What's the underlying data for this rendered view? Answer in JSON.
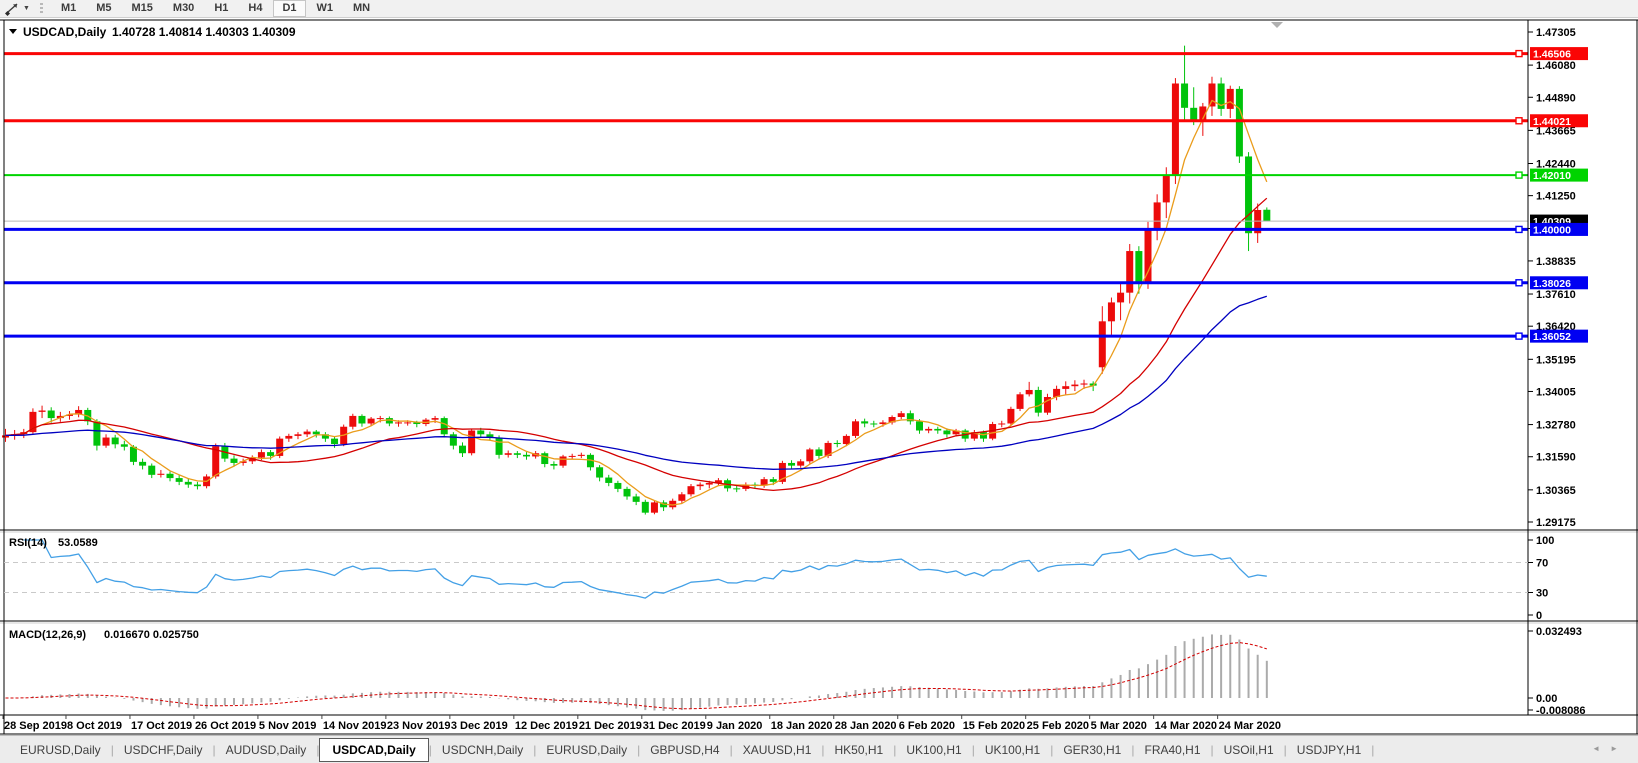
{
  "toolbar": {
    "dropdown_icon": "▼",
    "timeframes": [
      "M1",
      "M5",
      "M15",
      "M30",
      "H1",
      "H4",
      "D1",
      "W1",
      "MN"
    ],
    "active_timeframe": "D1"
  },
  "chart": {
    "title": {
      "collapse_icon": "▼",
      "symbol": "USDCAD,Daily",
      "ohlc": "1.40728 1.40814 1.40303 1.40309"
    },
    "rsi_label": {
      "name": "RSI(14)",
      "value": "53.0589"
    },
    "macd_label": {
      "name": "MACD(12,26,9)",
      "values": "0.016670 0.025750"
    }
  },
  "chart_data": {
    "type": "candlestick+indicators",
    "symbol": "USDCAD",
    "timeframe": "Daily",
    "last_ohlc": {
      "open": 1.40728,
      "high": 1.40814,
      "low": 1.40303,
      "close": 1.40309
    },
    "price_axis": {
      "range": [
        1.29175,
        1.47305
      ],
      "ticks": [
        "1.47305",
        "1.46080",
        "1.44890",
        "1.43665",
        "1.42440",
        "1.41250",
        "1.40035",
        "1.38835",
        "1.37610",
        "1.36420",
        "1.35195",
        "1.34005",
        "1.32780",
        "1.31590",
        "1.30365",
        "1.29175"
      ],
      "current": {
        "label": "1.40309",
        "value": 1.40309
      }
    },
    "hlines": [
      {
        "value": 1.46506,
        "label": "1.46506",
        "color": "#fa0505",
        "width": 3
      },
      {
        "value": 1.44021,
        "label": "1.44021",
        "color": "#fa0505",
        "width": 3
      },
      {
        "value": 1.4201,
        "label": "1.42010",
        "color": "#00d400",
        "width": 2
      },
      {
        "value": 1.4,
        "label": "1.40000",
        "color": "#0000f2",
        "width": 3
      },
      {
        "value": 1.38026,
        "label": "1.38026",
        "color": "#0000f2",
        "width": 3
      },
      {
        "value": 1.36052,
        "label": "1.36052",
        "color": "#0000f2",
        "width": 3
      }
    ],
    "moving_averages": [
      {
        "name": "ma-fast",
        "period": 5,
        "method": "sma",
        "color": "#ea9c1b"
      },
      {
        "name": "ma-medium",
        "period": 20,
        "method": "sma",
        "color": "#d40000"
      },
      {
        "name": "ma-slow",
        "period": 50,
        "method": "ema",
        "color": "#0000c0"
      }
    ],
    "rsi": {
      "period": 14,
      "last": 53.0589,
      "levels": [
        70,
        30
      ],
      "axis": [
        "100",
        "70",
        "30",
        "0"
      ],
      "color": "#43a0e6"
    },
    "macd": {
      "fast": 12,
      "slow": 26,
      "signal": 9,
      "last_main": 0.01667,
      "last_signal": 0.02575,
      "axis_max": "0.032493",
      "axis_zero": "0.00",
      "axis_min": "-0.008086",
      "hist_color": "#ababab",
      "signal_color": "#d40000"
    },
    "colors": {
      "bull": "#ec0b0b",
      "bear": "#00c30b",
      "background": "#ffffff",
      "border": "#000000",
      "current_price_line": "#b8b8b8",
      "current_price_badge": "#000000",
      "rsi_level_dash": "#c9c9c9",
      "shift_marker": "#b0b0b0"
    },
    "x_axis_dates": [
      "28 Sep 2019",
      "8 Oct 2019",
      "17 Oct 2019",
      "26 Oct 2019",
      "5 Nov 2019",
      "14 Nov 2019",
      "23 Nov 2019",
      "3 Dec 2019",
      "12 Dec 2019",
      "21 Dec 2019",
      "31 Dec 2019",
      "9 Jan 2020",
      "18 Jan 2020",
      "28 Jan 2020",
      "6 Feb 2020",
      "15 Feb 2020",
      "25 Feb 2020",
      "5 Mar 2020",
      "14 Mar 2020",
      "24 Mar 2020"
    ],
    "candles": [
      [
        1.323,
        1.3262,
        1.3214,
        1.3238
      ],
      [
        1.3238,
        1.3258,
        1.3222,
        1.3243
      ],
      [
        1.3243,
        1.3262,
        1.3228,
        1.325
      ],
      [
        1.325,
        1.3338,
        1.3244,
        1.3325
      ],
      [
        1.3325,
        1.3348,
        1.3302,
        1.333
      ],
      [
        1.333,
        1.3342,
        1.3285,
        1.3302
      ],
      [
        1.3302,
        1.3325,
        1.3288,
        1.331
      ],
      [
        1.331,
        1.3328,
        1.3296,
        1.3315
      ],
      [
        1.3315,
        1.3346,
        1.3305,
        1.3332
      ],
      [
        1.3332,
        1.334,
        1.3276,
        1.329
      ],
      [
        1.329,
        1.3298,
        1.3182,
        1.32
      ],
      [
        1.32,
        1.3242,
        1.3192,
        1.323
      ],
      [
        1.323,
        1.324,
        1.319,
        1.3205
      ],
      [
        1.3205,
        1.3218,
        1.3182,
        1.3196
      ],
      [
        1.3196,
        1.3202,
        1.3128,
        1.314
      ],
      [
        1.314,
        1.3152,
        1.3112,
        1.3126
      ],
      [
        1.3126,
        1.3134,
        1.308,
        1.3092
      ],
      [
        1.3092,
        1.311,
        1.3082,
        1.3096
      ],
      [
        1.3096,
        1.3104,
        1.3068,
        1.308
      ],
      [
        1.308,
        1.3092,
        1.3054,
        1.3066
      ],
      [
        1.3066,
        1.308,
        1.3044,
        1.3056
      ],
      [
        1.3056,
        1.3066,
        1.3038,
        1.305
      ],
      [
        1.305,
        1.3094,
        1.3042,
        1.3086
      ],
      [
        1.3086,
        1.3208,
        1.3078,
        1.3198
      ],
      [
        1.3198,
        1.321,
        1.314,
        1.3152
      ],
      [
        1.3152,
        1.3164,
        1.3122,
        1.3136
      ],
      [
        1.3136,
        1.3152,
        1.3126,
        1.3142
      ],
      [
        1.3142,
        1.3164,
        1.3132,
        1.3156
      ],
      [
        1.3156,
        1.3186,
        1.3146,
        1.3176
      ],
      [
        1.3176,
        1.3184,
        1.3148,
        1.3162
      ],
      [
        1.3162,
        1.3234,
        1.3154,
        1.3226
      ],
      [
        1.3226,
        1.3244,
        1.3214,
        1.3236
      ],
      [
        1.3236,
        1.325,
        1.3224,
        1.3242
      ],
      [
        1.3242,
        1.326,
        1.3232,
        1.3252
      ],
      [
        1.3252,
        1.3258,
        1.323,
        1.3242
      ],
      [
        1.3242,
        1.325,
        1.3214,
        1.3226
      ],
      [
        1.3226,
        1.3234,
        1.3192,
        1.3206
      ],
      [
        1.3206,
        1.3278,
        1.3198,
        1.327
      ],
      [
        1.327,
        1.3318,
        1.326,
        1.331
      ],
      [
        1.331,
        1.3316,
        1.327,
        1.3282
      ],
      [
        1.3282,
        1.3306,
        1.3272,
        1.33
      ],
      [
        1.33,
        1.331,
        1.3286,
        1.3302
      ],
      [
        1.3302,
        1.3308,
        1.3272,
        1.3282
      ],
      [
        1.3282,
        1.3294,
        1.327,
        1.3286
      ],
      [
        1.3286,
        1.3294,
        1.3274,
        1.3286
      ],
      [
        1.3286,
        1.3292,
        1.3268,
        1.328
      ],
      [
        1.328,
        1.3302,
        1.3272,
        1.3296
      ],
      [
        1.3296,
        1.331,
        1.3284,
        1.3302
      ],
      [
        1.3302,
        1.3308,
        1.323,
        1.3242
      ],
      [
        1.3242,
        1.325,
        1.3186,
        1.32
      ],
      [
        1.32,
        1.3212,
        1.3158,
        1.3172
      ],
      [
        1.3172,
        1.3262,
        1.3164,
        1.3256
      ],
      [
        1.3256,
        1.3266,
        1.323,
        1.3242
      ],
      [
        1.3242,
        1.3252,
        1.3218,
        1.323
      ],
      [
        1.323,
        1.3238,
        1.3152,
        1.3166
      ],
      [
        1.3166,
        1.3182,
        1.3156,
        1.3172
      ],
      [
        1.3172,
        1.318,
        1.3154,
        1.3166
      ],
      [
        1.3166,
        1.3176,
        1.3148,
        1.316
      ],
      [
        1.316,
        1.318,
        1.3152,
        1.3172
      ],
      [
        1.3172,
        1.3178,
        1.312,
        1.3132
      ],
      [
        1.3132,
        1.3142,
        1.3112,
        1.3126
      ],
      [
        1.3126,
        1.3166,
        1.3118,
        1.316
      ],
      [
        1.316,
        1.317,
        1.315,
        1.3162
      ],
      [
        1.3162,
        1.3174,
        1.3154,
        1.3166
      ],
      [
        1.3166,
        1.3172,
        1.3108,
        1.312
      ],
      [
        1.312,
        1.3128,
        1.3068,
        1.3082
      ],
      [
        1.3082,
        1.3092,
        1.305,
        1.3062
      ],
      [
        1.3062,
        1.307,
        1.3028,
        1.304
      ],
      [
        1.304,
        1.3048,
        1.3,
        1.3012
      ],
      [
        1.3012,
        1.3022,
        1.298,
        1.2992
      ],
      [
        1.2992,
        1.3,
        1.2945,
        1.2952
      ],
      [
        1.2952,
        1.2998,
        1.2946,
        1.299
      ],
      [
        1.299,
        1.2998,
        1.2958,
        1.2972
      ],
      [
        1.2972,
        1.3004,
        1.2964,
        1.2996
      ],
      [
        1.2996,
        1.3028,
        1.2988,
        1.302
      ],
      [
        1.302,
        1.3058,
        1.3012,
        1.305
      ],
      [
        1.305,
        1.3064,
        1.3036,
        1.3056
      ],
      [
        1.3056,
        1.307,
        1.3042,
        1.3062
      ],
      [
        1.3062,
        1.308,
        1.3052,
        1.3072
      ],
      [
        1.3072,
        1.3078,
        1.303,
        1.3042
      ],
      [
        1.3042,
        1.3052,
        1.3028,
        1.304
      ],
      [
        1.304,
        1.3064,
        1.3032,
        1.3056
      ],
      [
        1.3056,
        1.3064,
        1.304,
        1.3052
      ],
      [
        1.3052,
        1.3084,
        1.3044,
        1.3076
      ],
      [
        1.3076,
        1.3084,
        1.3054,
        1.3066
      ],
      [
        1.3066,
        1.3144,
        1.3058,
        1.3136
      ],
      [
        1.3136,
        1.3146,
        1.3114,
        1.3126
      ],
      [
        1.3126,
        1.315,
        1.3118,
        1.3142
      ],
      [
        1.3142,
        1.3192,
        1.3134,
        1.3186
      ],
      [
        1.3186,
        1.3194,
        1.315,
        1.3162
      ],
      [
        1.3162,
        1.3218,
        1.3154,
        1.321
      ],
      [
        1.321,
        1.322,
        1.3194,
        1.3206
      ],
      [
        1.3206,
        1.3242,
        1.3198,
        1.3236
      ],
      [
        1.3236,
        1.3298,
        1.3228,
        1.329
      ],
      [
        1.329,
        1.33,
        1.3268,
        1.3282
      ],
      [
        1.3282,
        1.3292,
        1.3268,
        1.328
      ],
      [
        1.328,
        1.3294,
        1.327,
        1.3286
      ],
      [
        1.3286,
        1.3312,
        1.3278,
        1.3306
      ],
      [
        1.3306,
        1.3328,
        1.3298,
        1.332
      ],
      [
        1.332,
        1.333,
        1.3278,
        1.329
      ],
      [
        1.329,
        1.3298,
        1.3244,
        1.3256
      ],
      [
        1.3256,
        1.327,
        1.3246,
        1.3262
      ],
      [
        1.3262,
        1.327,
        1.3244,
        1.3256
      ],
      [
        1.3256,
        1.3264,
        1.323,
        1.3242
      ],
      [
        1.3242,
        1.3262,
        1.3234,
        1.3256
      ],
      [
        1.3256,
        1.3262,
        1.3214,
        1.3226
      ],
      [
        1.3226,
        1.3258,
        1.3218,
        1.325
      ],
      [
        1.325,
        1.3256,
        1.3214,
        1.3226
      ],
      [
        1.3226,
        1.3288,
        1.322,
        1.328
      ],
      [
        1.328,
        1.3292,
        1.3268,
        1.3282
      ],
      [
        1.3282,
        1.3344,
        1.3274,
        1.3336
      ],
      [
        1.3336,
        1.3398,
        1.3328,
        1.339
      ],
      [
        1.339,
        1.3436,
        1.3382,
        1.3406
      ],
      [
        1.3406,
        1.3418,
        1.3308,
        1.3322
      ],
      [
        1.3322,
        1.3392,
        1.3314,
        1.338
      ],
      [
        1.338,
        1.3422,
        1.3368,
        1.341
      ],
      [
        1.341,
        1.3438,
        1.3388,
        1.342
      ],
      [
        1.342,
        1.3442,
        1.3402,
        1.3426
      ],
      [
        1.3426,
        1.3444,
        1.341,
        1.343
      ],
      [
        1.343,
        1.3438,
        1.3402,
        1.3422
      ],
      [
        1.349,
        1.3716,
        1.3466,
        1.366
      ],
      [
        1.366,
        1.3748,
        1.361,
        1.373
      ],
      [
        1.373,
        1.38,
        1.3664,
        1.3766
      ],
      [
        1.3766,
        1.3946,
        1.3726,
        1.392
      ],
      [
        1.392,
        1.3938,
        1.3762,
        1.3802
      ],
      [
        1.3802,
        1.4028,
        1.378,
        1.4
      ],
      [
        1.4,
        1.413,
        1.396,
        1.41
      ],
      [
        1.41,
        1.423,
        1.4042,
        1.42
      ],
      [
        1.42,
        1.456,
        1.4168,
        1.454
      ],
      [
        1.454,
        1.468,
        1.4404,
        1.445
      ],
      [
        1.445,
        1.4526,
        1.4386,
        1.4402
      ],
      [
        1.4402,
        1.4468,
        1.4346,
        1.4455
      ],
      [
        1.4455,
        1.4565,
        1.442,
        1.454
      ],
      [
        1.454,
        1.4562,
        1.442,
        1.4446
      ],
      [
        1.4446,
        1.4532,
        1.4412,
        1.452
      ],
      [
        1.452,
        1.453,
        1.4246,
        1.427
      ],
      [
        1.427,
        1.4286,
        1.392,
        1.3986
      ],
      [
        1.3986,
        1.4096,
        1.395,
        1.4072
      ],
      [
        1.40728,
        1.40814,
        1.40303,
        1.40309
      ]
    ]
  },
  "tabs": {
    "items": [
      {
        "label": "EURUSD,Daily",
        "active": false
      },
      {
        "label": "USDCHF,Daily",
        "active": false
      },
      {
        "label": "AUDUSD,Daily",
        "active": false
      },
      {
        "label": "USDCAD,Daily",
        "active": true
      },
      {
        "label": "USDCNH,Daily",
        "active": false
      },
      {
        "label": "EURUSD,Daily",
        "active": false
      },
      {
        "label": "GBPUSD,H4",
        "active": false
      },
      {
        "label": "XAUUSD,H1",
        "active": false
      },
      {
        "label": "HK50,H1",
        "active": false
      },
      {
        "label": "UK100,H1",
        "active": false
      },
      {
        "label": "UK100,H1",
        "active": false
      },
      {
        "label": "GER30,H1",
        "active": false
      },
      {
        "label": "FRA40,H1",
        "active": false
      },
      {
        "label": "USOil,H1",
        "active": false
      },
      {
        "label": "USDJPY,H1",
        "active": false
      }
    ],
    "scroll_left": "◄",
    "scroll_right": "►"
  }
}
